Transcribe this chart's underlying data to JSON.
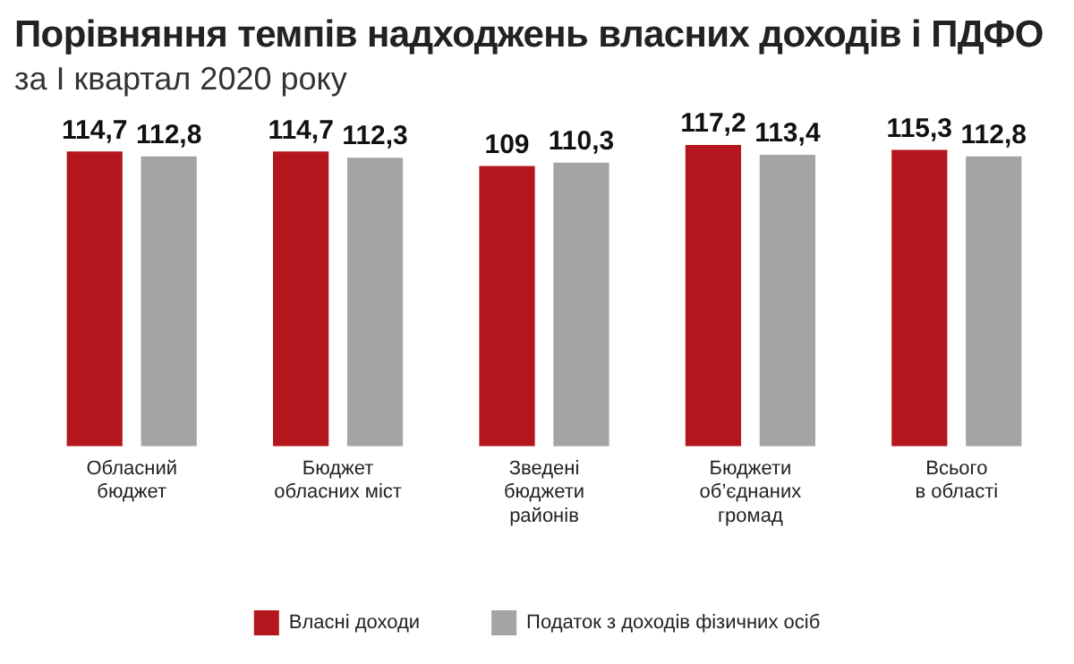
{
  "chart_data": {
    "type": "bar",
    "title": "Порівняння темпів надходжень власних доходів і ПДФО",
    "subtitle": "за І квартал 2020 року",
    "categories": [
      "Обласний бюджет",
      "Бюджет обласних міст",
      "Зведені бюджети районів",
      "Бюджети об’єднаних громад",
      "Всього в області"
    ],
    "series": [
      {
        "name": "Власні доходи",
        "color": "#b3161c",
        "values": [
          114.7,
          114.7,
          109,
          117.2,
          115.3
        ],
        "value_labels": [
          "114,7",
          "114,7",
          "109",
          "117,2",
          "115,3"
        ]
      },
      {
        "name": "Податок з доходів фізичних осіб",
        "color": "#a5a4a4",
        "values": [
          112.8,
          112.3,
          110.3,
          113.4,
          112.8
        ],
        "value_labels": [
          "112,8",
          "112,3",
          "110,3",
          "113,4",
          "112,8"
        ]
      }
    ],
    "tick_labels": "x",
    "grid": false,
    "legend": "bottom"
  }
}
